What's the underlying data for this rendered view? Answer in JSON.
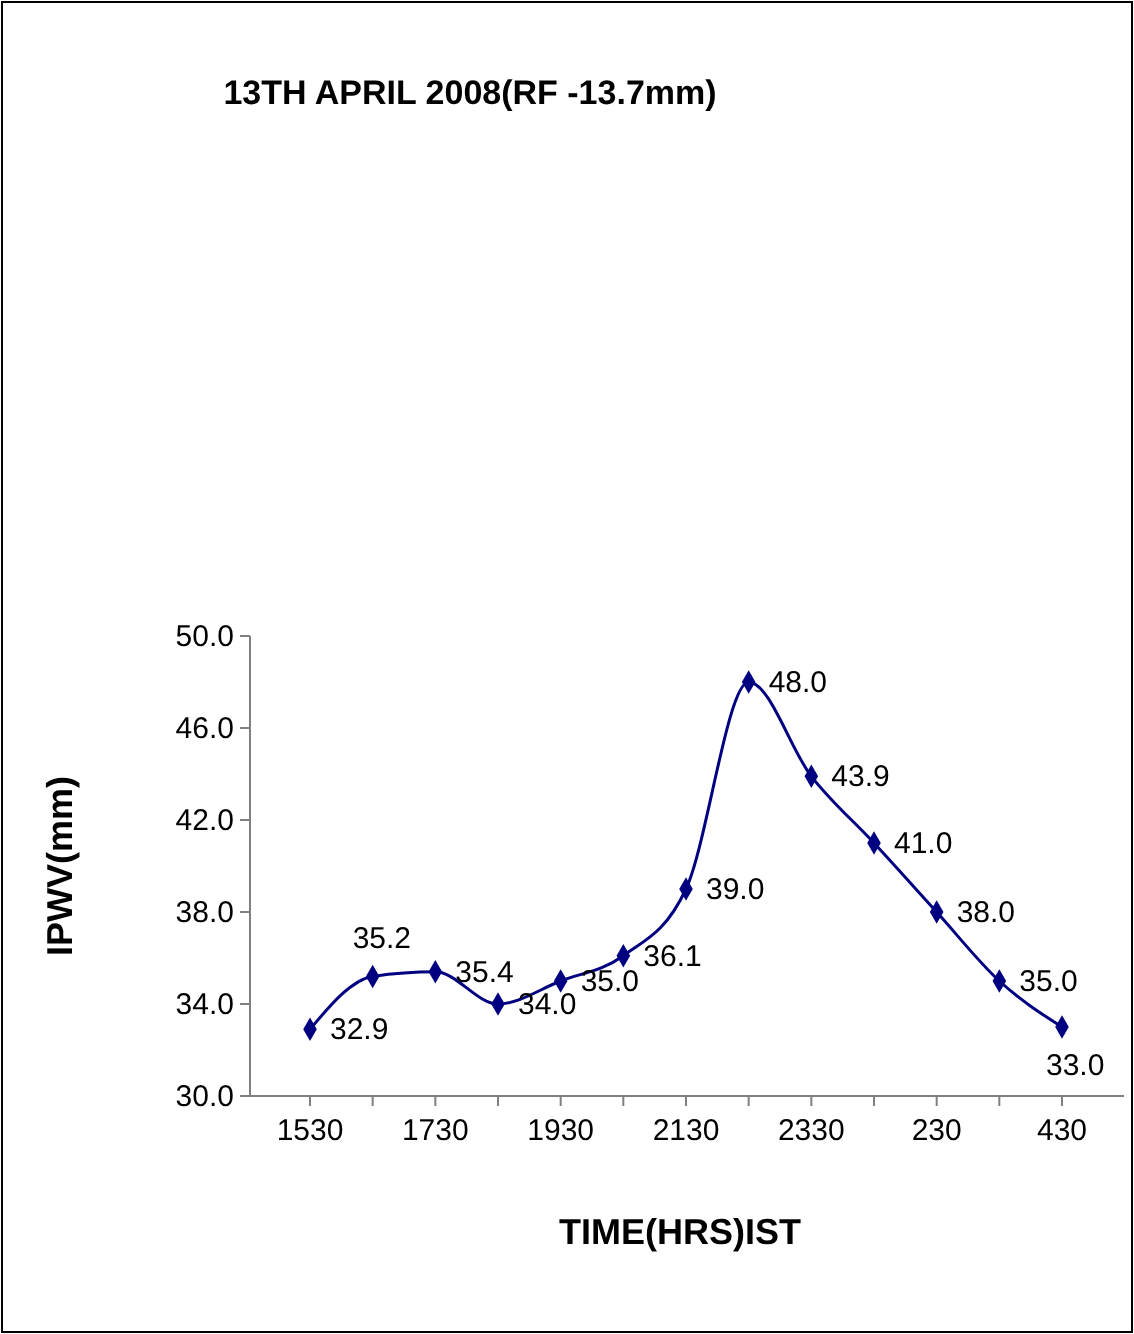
{
  "chart_data": {
    "type": "line",
    "title": "13TH APRIL 2008(RF -13.7mm)",
    "xlabel": "TIME(HRS)IST",
    "ylabel": "IPWV(mm)",
    "categories": [
      "1530",
      null,
      "1730",
      null,
      "1930",
      null,
      "2130",
      null,
      "2330",
      null,
      "230",
      null,
      "430"
    ],
    "series": [
      {
        "color": "#000080",
        "values": [
          32.9,
          35.2,
          35.4,
          34.0,
          35.0,
          36.1,
          39.0,
          48.0,
          43.9,
          41.0,
          38.0,
          35.0,
          33.0
        ],
        "value_labels": [
          "32.9",
          "35.2",
          "35.4",
          "34.0",
          "35.0",
          "36.1",
          "39.0",
          "48.0",
          "43.9",
          "41.0",
          "38.0",
          "35.0",
          "33.0"
        ]
      }
    ],
    "ylim": [
      30,
      50
    ],
    "yticks": [
      {
        "value": 30,
        "label": "30.0"
      },
      {
        "value": 34,
        "label": "34.0"
      },
      {
        "value": 38,
        "label": "38.0"
      },
      {
        "value": 42,
        "label": "42.0"
      },
      {
        "value": 46,
        "label": "46.0"
      },
      {
        "value": 50,
        "label": "50.0"
      }
    ],
    "grid": false,
    "marker": "diamond",
    "line_style": "solid"
  }
}
